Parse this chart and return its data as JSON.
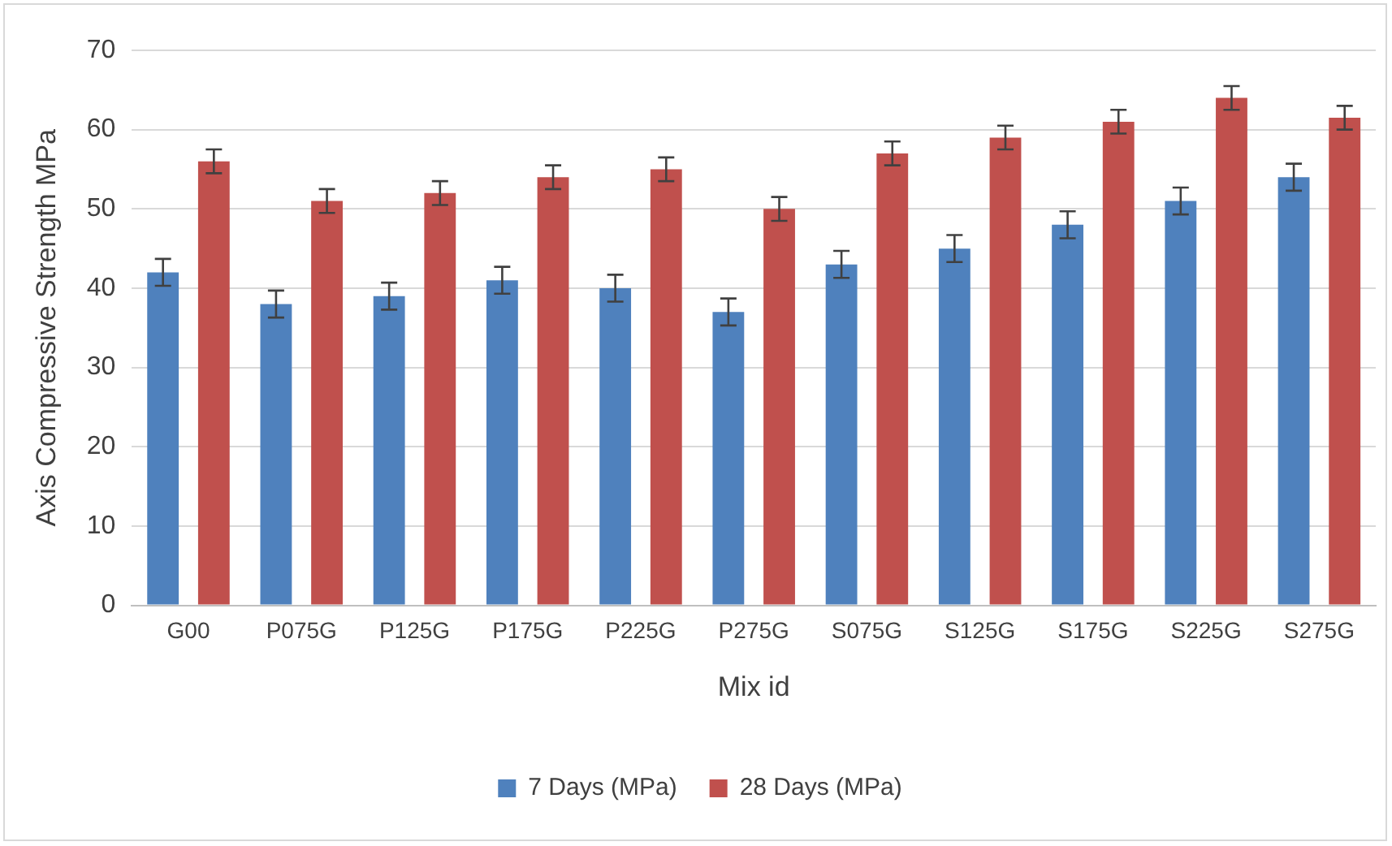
{
  "chart_data": {
    "type": "bar",
    "xlabel": "Mix id",
    "ylabel": "Axis Compressive Strength MPa",
    "categories": [
      "G00",
      "P075G",
      "P125G",
      "P175G",
      "P225G",
      "P275G",
      "S075G",
      "S125G",
      "S175G",
      "S225G",
      "S275G"
    ],
    "series": [
      {
        "name": "7 Days (MPa)",
        "color": "#4f81bd",
        "values": [
          42,
          38,
          39,
          41,
          40,
          37,
          43,
          45,
          48,
          51,
          54
        ],
        "errors": [
          1.7,
          1.7,
          1.7,
          1.7,
          1.7,
          1.7,
          1.7,
          1.7,
          1.7,
          1.7,
          1.7
        ]
      },
      {
        "name": "28 Days (MPa)",
        "color": "#c0504d",
        "values": [
          56,
          51,
          52,
          54,
          55,
          50,
          57,
          59,
          61,
          64,
          61.5
        ],
        "errors": [
          1.5,
          1.5,
          1.5,
          1.5,
          1.5,
          1.5,
          1.5,
          1.5,
          1.5,
          1.5,
          1.5
        ]
      }
    ],
    "ylim": [
      0,
      70
    ],
    "yticks": [
      0,
      10,
      20,
      30,
      40,
      50,
      60,
      70
    ],
    "grid": "y",
    "legend": "bottom"
  }
}
